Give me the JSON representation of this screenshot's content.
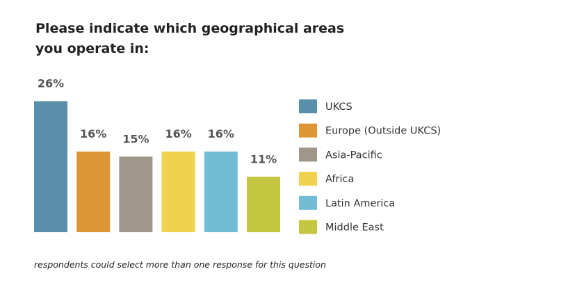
{
  "title": "Please indicate which geographical areas you operate in:",
  "footnote": "respondents could select more than one response for this question",
  "chart_data": {
    "type": "bar",
    "title": "Please indicate which geographical areas you operate in:",
    "categories": [
      "UKCS",
      "Europe (Outside UKCS)",
      "Asia-Pacific",
      "Africa",
      "Latin America",
      "Middle East"
    ],
    "values": [
      26,
      16,
      15,
      16,
      16,
      11
    ],
    "data_labels": [
      "26%",
      "16%",
      "15%",
      "16%",
      "16%",
      "11%"
    ],
    "colors": [
      "#5a8faa",
      "#de9535",
      "#a0968a",
      "#f0d24e",
      "#72bcd6",
      "#c4c63f"
    ],
    "unit": "%",
    "grid": false,
    "axes_visible": false,
    "legend_placement": "right"
  }
}
